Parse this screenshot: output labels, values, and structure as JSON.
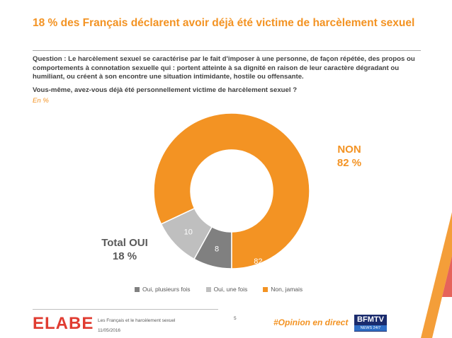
{
  "title": "18 % des Français déclarent avoir déjà été victime de harcèlement sexuel",
  "question": "Question : Le harcèlement sexuel se caractérise par le fait d'imposer à une personne, de façon répétée, des propos ou comportements à connotation sexuelle qui : portent atteinte à sa dignité en raison de leur caractère dégradant ou humiliant, ou créent à son encontre une situation intimidante, hostile ou offensante.",
  "subquestion": "Vous-même, avez-vous déjà été personnellement victime de harcèlement sexuel ?",
  "unit": "En %",
  "chart_data": {
    "type": "pie",
    "donut": true,
    "categories": [
      "Oui, plusieurs fois",
      "Oui, une fois",
      "Non, jamais"
    ],
    "values": [
      8,
      10,
      82
    ],
    "colors": [
      "#808080",
      "#bfbfbf",
      "#f39323"
    ],
    "legend_position": "bottom",
    "annotations": {
      "non_label": "NON",
      "non_value": "82 %",
      "oui_label": "Total OUI",
      "oui_value": "18 %"
    }
  },
  "footer": {
    "logo": "ELABE",
    "survey_title": "Les Français et le harcèlement sexuel",
    "date": "11/05/2016",
    "page": "5",
    "hashtag": "#Opinion en direct",
    "partner_top": "BFMTV",
    "partner_bottom": "NEWS 24/7"
  }
}
